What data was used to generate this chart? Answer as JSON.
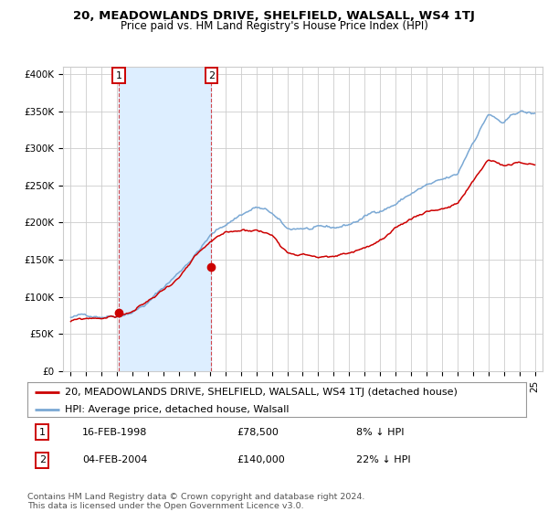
{
  "title": "20, MEADOWLANDS DRIVE, SHELFIELD, WALSALL, WS4 1TJ",
  "subtitle": "Price paid vs. HM Land Registry's House Price Index (HPI)",
  "ylabel_ticks": [
    "£0",
    "£50K",
    "£100K",
    "£150K",
    "£200K",
    "£250K",
    "£300K",
    "£350K",
    "£400K"
  ],
  "ytick_values": [
    0,
    50000,
    100000,
    150000,
    200000,
    250000,
    300000,
    350000,
    400000
  ],
  "ylim": [
    0,
    410000
  ],
  "hpi_color": "#7aa8d4",
  "price_color": "#cc0000",
  "shade_color": "#ddeeff",
  "background_color": "#ffffff",
  "grid_color": "#cccccc",
  "sale1_year": 1998.12,
  "sale1_price": 78500,
  "sale2_year": 2004.09,
  "sale2_price": 140000,
  "legend_line1": "20, MEADOWLANDS DRIVE, SHELFIELD, WALSALL, WS4 1TJ (detached house)",
  "legend_line2": "HPI: Average price, detached house, Walsall",
  "annotation1_date": "16-FEB-1998",
  "annotation1_price": "£78,500",
  "annotation1_hpi": "8% ↓ HPI",
  "annotation2_date": "04-FEB-2004",
  "annotation2_price": "£140,000",
  "annotation2_hpi": "22% ↓ HPI",
  "footer": "Contains HM Land Registry data © Crown copyright and database right 2024.\nThis data is licensed under the Open Government Licence v3.0.",
  "title_fontsize": 9.5,
  "subtitle_fontsize": 8.5,
  "tick_fontsize": 7.5,
  "legend_fontsize": 8,
  "annotation_fontsize": 8,
  "footer_fontsize": 6.8
}
